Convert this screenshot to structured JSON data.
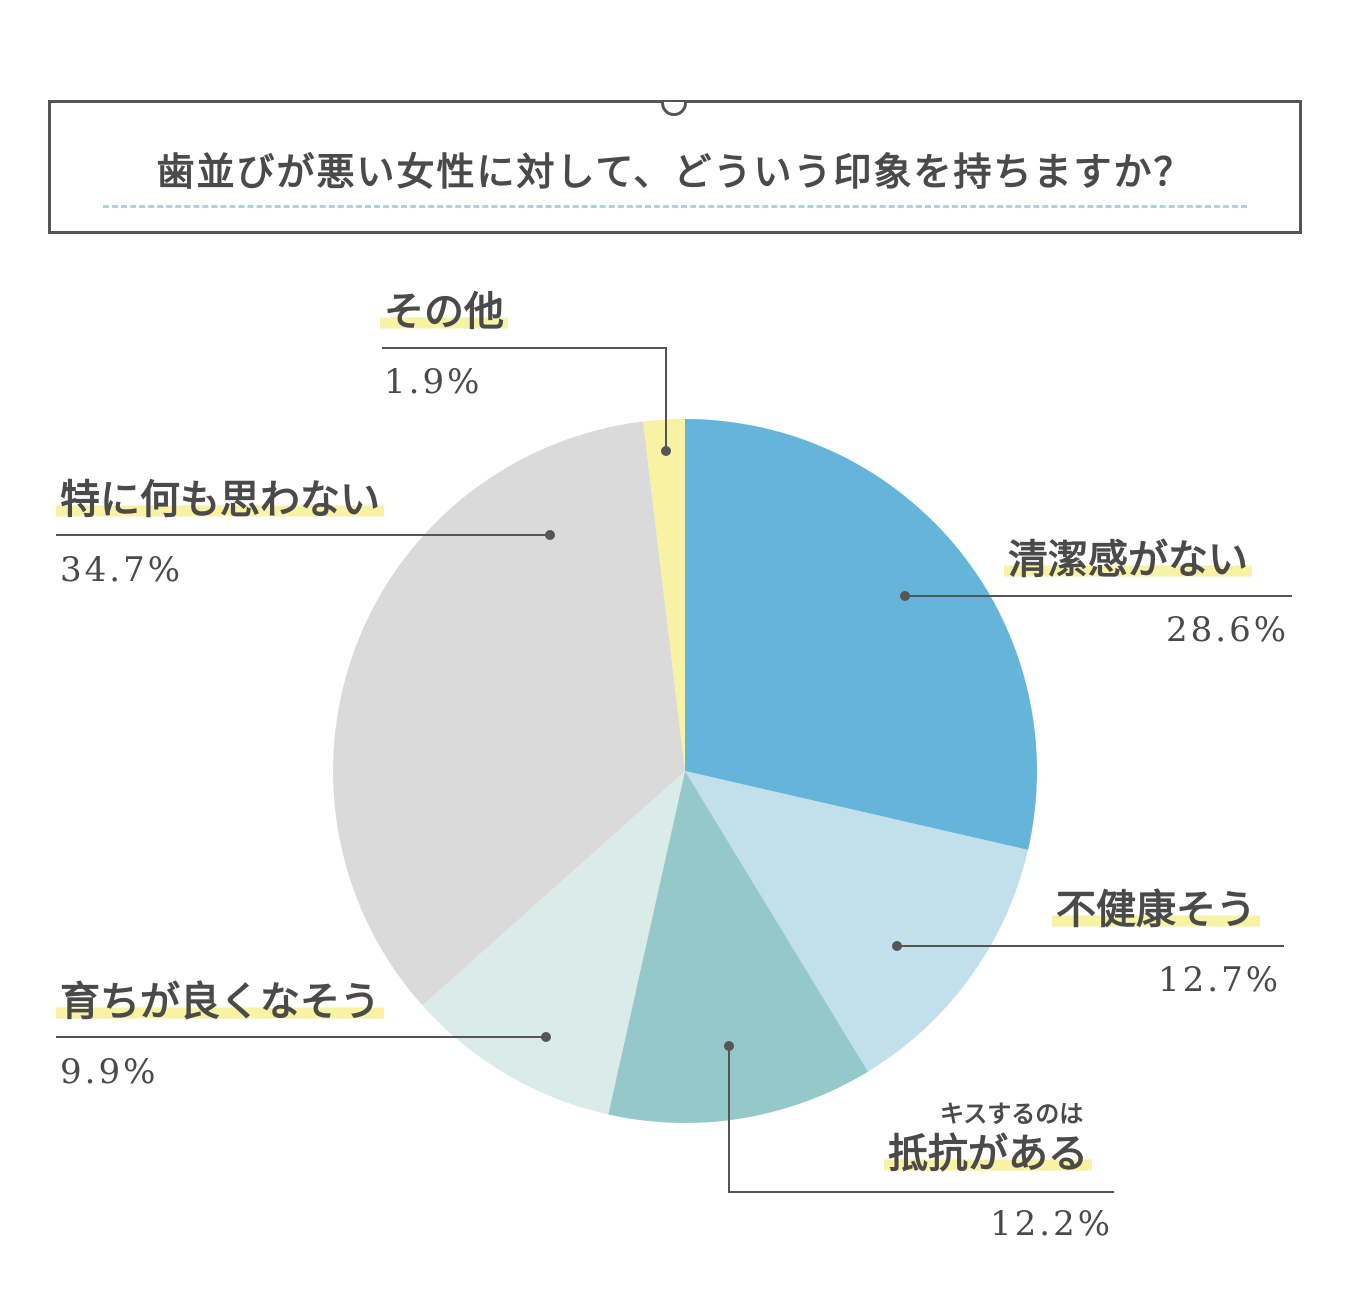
{
  "title": "歯並びが悪い女性に対して、どういう印象を持ちますか？",
  "chart_data": {
    "type": "pie",
    "start": "12 o'clock, clockwise",
    "slices": [
      {
        "label": "清潔感がない",
        "sublabel": "",
        "value": 28.6,
        "pct_text": "28.6%",
        "color": "#65b4da"
      },
      {
        "label": "不健康そう",
        "sublabel": "",
        "value": 12.7,
        "pct_text": "12.7%",
        "color": "#c1e0ec"
      },
      {
        "label": "抵抗がある",
        "sublabel": "キスするのは",
        "value": 12.2,
        "pct_text": "12.2%",
        "color": "#94c8c9"
      },
      {
        "label": "育ちが良くなそう",
        "sublabel": "",
        "value": 9.9,
        "pct_text": "9.9%",
        "color": "#dbece8"
      },
      {
        "label": "特に何も思わない",
        "sublabel": "",
        "value": 34.7,
        "pct_text": "34.7%",
        "color": "#d9dad9"
      },
      {
        "label": "その他",
        "sublabel": "",
        "value": 1.9,
        "pct_text": "1.9%",
        "color": "#f7f2a4"
      }
    ]
  }
}
